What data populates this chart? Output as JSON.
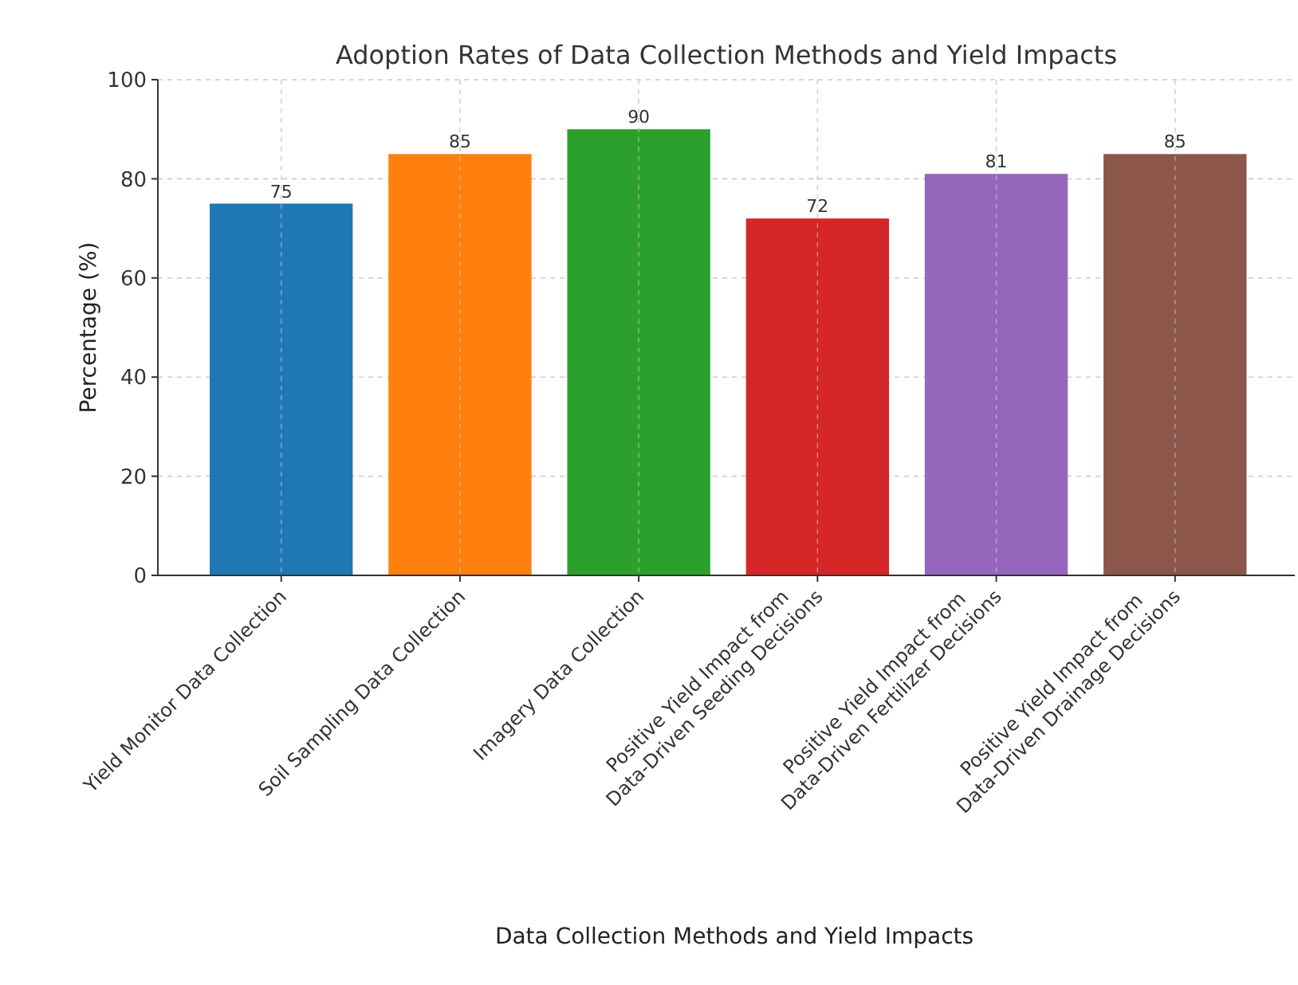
{
  "chart_data": {
    "type": "bar",
    "title": "Adoption Rates of Data Collection Methods and Yield Impacts",
    "xlabel": "Data Collection Methods and Yield Impacts",
    "ylabel": "Percentage (%)",
    "categories": [
      "Yield Monitor Data Collection",
      "Soil Sampling Data Collection",
      "Imagery Data Collection",
      "Positive Yield Impact from\nData-Driven Seeding Decisions",
      "Positive Yield Impact from\nData-Driven Fertilizer Decisions",
      "Positive Yield Impact from\nData-Driven Drainage Decisions"
    ],
    "values": [
      75,
      85,
      90,
      72,
      81,
      85
    ],
    "colors": [
      "#1f77b4",
      "#ff7f0e",
      "#2ca02c",
      "#d62728",
      "#9467bd",
      "#8c564b"
    ],
    "ylim": [
      0,
      100
    ],
    "yticks": [
      0,
      20,
      40,
      60,
      80,
      100
    ],
    "grid": true,
    "data_labels": true
  }
}
